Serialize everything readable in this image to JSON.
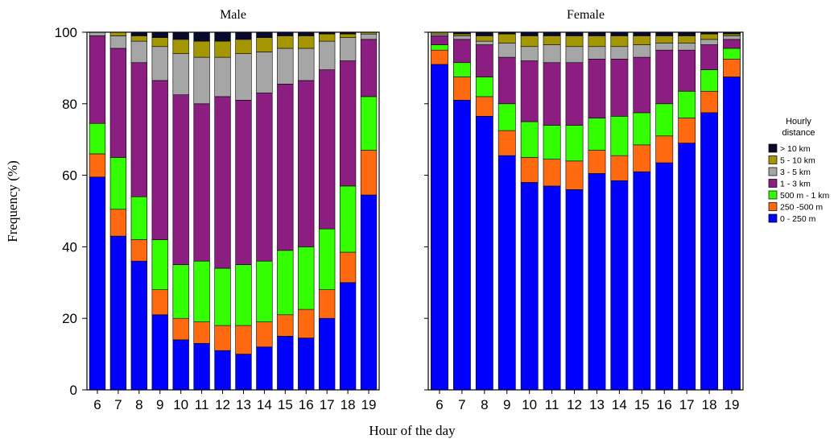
{
  "chart_data": {
    "type": "bar",
    "stacked": true,
    "normalized_percent": true,
    "ylabel": "Frequency (%)",
    "xlabel": "Hour of the day",
    "ylim": [
      0,
      100
    ],
    "yticks": [
      "0",
      "20",
      "40",
      "60",
      "80",
      "100"
    ],
    "categories": [
      "6",
      "7",
      "8",
      "9",
      "10",
      "11",
      "12",
      "13",
      "14",
      "15",
      "16",
      "17",
      "18",
      "19"
    ],
    "legend": {
      "title_line1": "Hourly",
      "title_line2": "distance",
      "placement": "right",
      "entries": [
        "> 10 km",
        "5 - 10 km",
        "3 - 5 km",
        "1 - 3 km",
        "500 m - 1 km",
        "250 -500 m",
        "0 - 250 m"
      ]
    },
    "colors": {
      "0 - 250 m": "#0000ff",
      "250 -500 m": "#ff6a10",
      "500 m - 1 km": "#33ff00",
      "1 - 3 km": "#8b1e80",
      "3 - 5 km": "#a6a6a6",
      "5 - 10 km": "#a39600",
      "> 10 km": "#0a0a2e"
    },
    "stack_order": [
      "0 - 250 m",
      "250 -500 m",
      "500 m - 1 km",
      "1 - 3 km",
      "3 - 5 km",
      "5 - 10 km",
      "> 10 km"
    ],
    "panels": [
      {
        "title": "Male",
        "series": [
          {
            "name": "0 - 250 m",
            "values": [
              59.5,
              43,
              36,
              21,
              14,
              13,
              11,
              10,
              12,
              15,
              14.5,
              20,
              30,
              54.5
            ]
          },
          {
            "name": "250 -500 m",
            "values": [
              6.5,
              7.5,
              6,
              7,
              6,
              6,
              7,
              8,
              7,
              6,
              8,
              8,
              8.5,
              12.5
            ]
          },
          {
            "name": "500 m - 1 km",
            "values": [
              8.5,
              14.5,
              12,
              14,
              15,
              17,
              16,
              17,
              17,
              18,
              17.5,
              17,
              18.5,
              15
            ]
          },
          {
            "name": "1 - 3 km",
            "values": [
              24.5,
              30.5,
              37.5,
              44.5,
              47.5,
              44,
              48,
              46,
              47,
              46.5,
              46.5,
              44.5,
              35,
              16
            ]
          },
          {
            "name": "3 - 5 km",
            "values": [
              1,
              3.5,
              6,
              9.5,
              11.5,
              13,
              11,
              13,
              11.5,
              10,
              9,
              8,
              6.5,
              1.5
            ]
          },
          {
            "name": "5 - 10 km",
            "values": [
              0,
              1,
              1.5,
              2.5,
              4,
              4.5,
              4.5,
              4,
              4,
              3.5,
              3.5,
              2,
              1,
              0.5
            ]
          },
          {
            "name": "> 10 km",
            "values": [
              0,
              0,
              1,
              1.5,
              2,
              2.5,
              2.5,
              2,
              1.5,
              1,
              1,
              0.5,
              0.5,
              0
            ]
          }
        ]
      },
      {
        "title": "Female",
        "series": [
          {
            "name": "0 - 250 m",
            "values": [
              91,
              81,
              76.5,
              65.5,
              58,
              57,
              56,
              60.5,
              58.5,
              61,
              63.5,
              69,
              77.5,
              87.5
            ]
          },
          {
            "name": "250 -500 m",
            "values": [
              4,
              6.5,
              5.5,
              7,
              7,
              7.5,
              8,
              6.5,
              7,
              7.5,
              7.5,
              7,
              6,
              5
            ]
          },
          {
            "name": "500 m - 1 km",
            "values": [
              1.5,
              4,
              5.5,
              7.5,
              10,
              9.5,
              10,
              9,
              11,
              9,
              9,
              7.5,
              6,
              3
            ]
          },
          {
            "name": "1 - 3 km",
            "values": [
              2.5,
              6.5,
              9,
              13,
              17,
              17.5,
              17.5,
              16.5,
              16,
              15.5,
              15,
              11.5,
              7,
              2.5
            ]
          },
          {
            "name": "3 - 5 km",
            "values": [
              0.5,
              1,
              1,
              4,
              4,
              5,
              4.5,
              3.5,
              3.5,
              3.5,
              2,
              2,
              1.5,
              1
            ]
          },
          {
            "name": "5 - 10 km",
            "values": [
              0.5,
              0.5,
              1.5,
              2.5,
              3,
              2.5,
              3,
              3,
              3,
              2.5,
              2,
              2,
              1.5,
              0.5
            ]
          },
          {
            "name": "> 10 km",
            "values": [
              0,
              0.5,
              1,
              0.5,
              1,
              1,
              1,
              1,
              1,
              1,
              1,
              1,
              0.5,
              0.5
            ]
          }
        ]
      }
    ]
  }
}
